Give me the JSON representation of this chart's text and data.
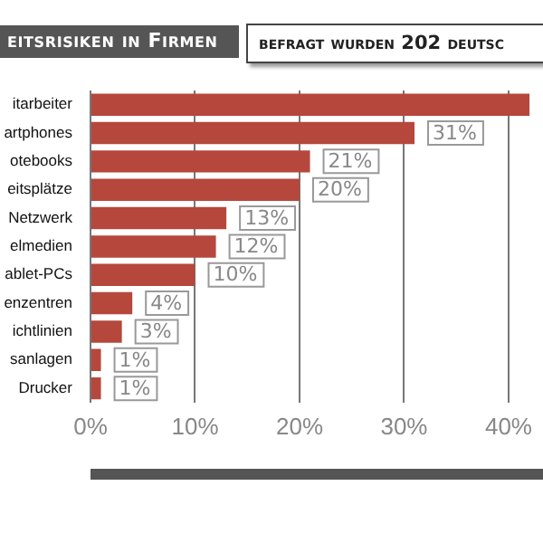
{
  "chart_data": {
    "type": "bar",
    "orientation": "horizontal",
    "title": "eitsrisiken in Firmen",
    "subtitle": "befragt wurden 202 deutsc",
    "categories": [
      "itarbeiter",
      "artphones",
      "otebooks",
      "eitsplätze",
      "Netzwerk",
      "elmedien",
      "ablet-PCs",
      "enzentren",
      "ichtlinien",
      "sanlagen",
      "Drucker"
    ],
    "values": [
      42,
      31,
      21,
      20,
      13,
      12,
      10,
      4,
      3,
      1,
      1
    ],
    "value_labels": [
      null,
      "31%",
      "21%",
      "20%",
      "13%",
      "12%",
      "10%",
      "4%",
      "3%",
      "1%",
      "1%"
    ],
    "color": "#b5473d",
    "xlim": [
      0,
      42.4
    ],
    "xticks": [
      {
        "value": 0,
        "label": "0%"
      },
      {
        "value": 10,
        "label": "10%"
      },
      {
        "value": 20,
        "label": "20%"
      },
      {
        "value": 30,
        "label": "30%"
      },
      {
        "value": 40,
        "label": "40%"
      }
    ],
    "grid": "x",
    "legend": false
  }
}
